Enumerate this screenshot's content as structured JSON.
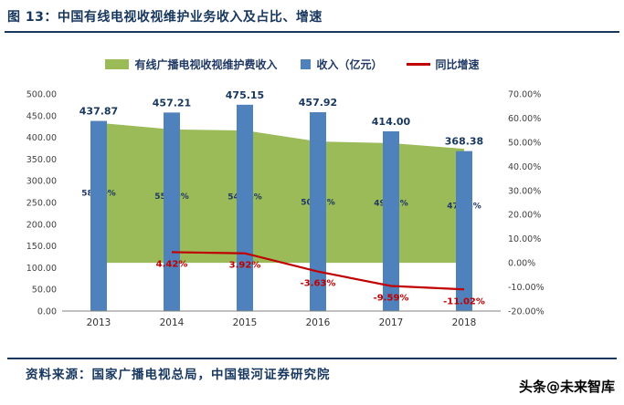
{
  "header": {
    "title": "图 13：中国有线电视收视维护业务收入及占比、增速"
  },
  "footer": {
    "source": "资料来源：国家广播电视总局，中国银河证券研究院",
    "watermark": "头条@未来智库"
  },
  "colors": {
    "navy": "#17375E",
    "green": "#9BBB59",
    "blue": "#4F81BD",
    "red": "#C00000",
    "axis_text": "#404040"
  },
  "chart_data": {
    "type": "combo",
    "title": "中国有线电视收视维护业务收入及占比、增速",
    "categories": [
      "2013",
      "2014",
      "2015",
      "2016",
      "2017",
      "2018"
    ],
    "series": [
      {
        "name": "有线广播电视收视维护费收入",
        "type": "area",
        "axis": "right",
        "unit": "%",
        "color": "#9BBB59",
        "label_color": "#1F3864",
        "values": [
          58.0,
          55.29,
          54.86,
          50.31,
          49.61,
          47.26
        ],
        "labels": [
          "58.00%",
          "55.29%",
          "54.86%",
          "50.31%",
          "49.61%",
          "47.26%"
        ]
      },
      {
        "name": "收入（亿元）",
        "type": "bar",
        "axis": "left",
        "unit": "亿元",
        "color": "#4F81BD",
        "label_color": "#17375E",
        "values": [
          437.87,
          457.21,
          475.15,
          457.92,
          414.0,
          368.38
        ],
        "labels": [
          "437.87",
          "457.21",
          "475.15",
          "457.92",
          "414.00",
          "368.38"
        ]
      },
      {
        "name": "同比增速",
        "type": "line",
        "axis": "right",
        "unit": "%",
        "color": "#C00000",
        "label_color": "#C00000",
        "values": [
          null,
          4.42,
          3.92,
          -3.63,
          -9.59,
          -11.02
        ],
        "labels": [
          "",
          "4.42%",
          "3.92%",
          "-3.63%",
          "-9.59%",
          "-11.02%"
        ]
      }
    ],
    "left_axis": {
      "min": 0,
      "max": 500,
      "step": 50,
      "ticks": [
        "500.00",
        "450.00",
        "400.00",
        "350.00",
        "300.00",
        "250.00",
        "200.00",
        "150.00",
        "100.00",
        "50.00",
        "0.00"
      ]
    },
    "right_axis": {
      "min": -20,
      "max": 70,
      "step": 10,
      "ticks": [
        "70.00%",
        "60.00%",
        "50.00%",
        "40.00%",
        "30.00%",
        "20.00%",
        "10.00%",
        "0.00%",
        "-10.00%",
        "-20.00%"
      ]
    },
    "legend_position": "top",
    "grid": false
  }
}
